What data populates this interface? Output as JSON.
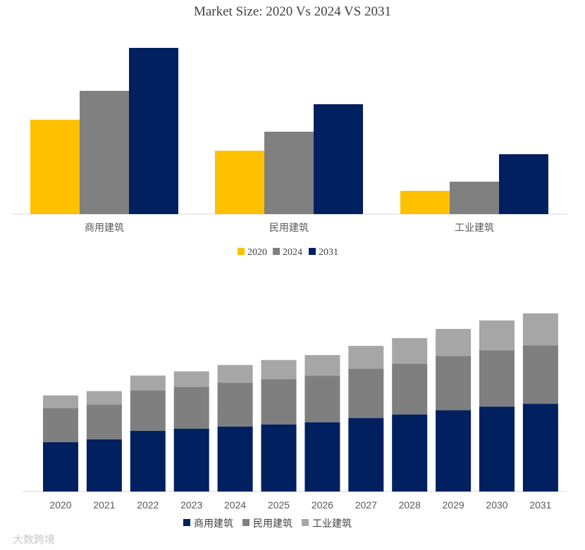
{
  "colors": {
    "y2020": "#FFC000",
    "y2024": "#808080",
    "y2031": "#002060",
    "commercial": "#002060",
    "civil": "#7F7F7F",
    "industrial": "#A6A6A6",
    "axis": "#D9D9D9"
  },
  "chart_data": [
    {
      "type": "bar",
      "title": "Market Size: 2020 Vs 2024 VS 2031",
      "categories": [
        "商用建筑",
        "民用建筑",
        "工业建筑"
      ],
      "series": [
        {
          "name": "2020",
          "values": [
            134,
            90,
            33
          ]
        },
        {
          "name": "2024",
          "values": [
            175,
            117,
            46
          ]
        },
        {
          "name": "2031",
          "values": [
            236,
            156,
            85
          ]
        }
      ],
      "ylim": [
        0,
        240
      ],
      "legend": "bottom"
    },
    {
      "type": "bar",
      "stacked": true,
      "categories": [
        "2020",
        "2021",
        "2022",
        "2023",
        "2024",
        "2025",
        "2026",
        "2027",
        "2028",
        "2029",
        "2030",
        "2031"
      ],
      "series": [
        {
          "name": "商用建筑",
          "values": [
            70,
            74,
            86,
            89,
            92,
            95,
            98,
            104,
            109,
            115,
            120,
            124
          ]
        },
        {
          "name": "民用建筑",
          "values": [
            48,
            49,
            57,
            59,
            62,
            64,
            66,
            70,
            72,
            77,
            80,
            83
          ]
        },
        {
          "name": "工业建筑",
          "values": [
            18,
            19,
            21,
            22,
            25,
            27,
            29,
            32,
            36,
            38,
            42,
            45
          ]
        }
      ],
      "ylim": [
        0,
        260
      ],
      "legend": "bottom"
    }
  ],
  "watermark": "大数跨境"
}
